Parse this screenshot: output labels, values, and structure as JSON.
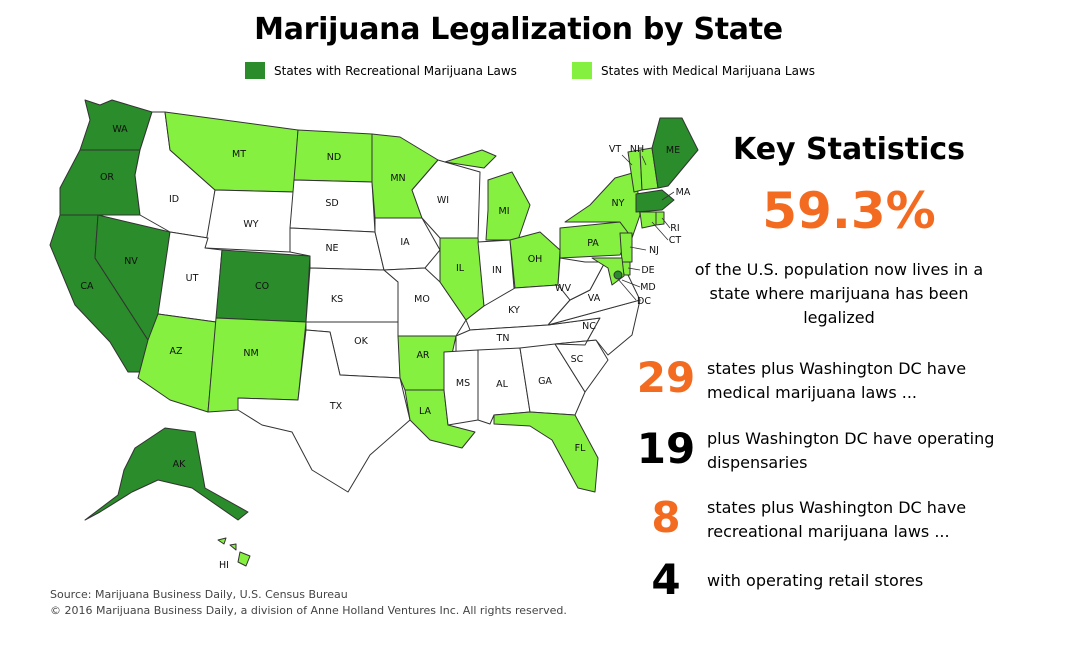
{
  "title": "Marijuana Legalization by State",
  "legend": [
    {
      "label": "States with Recreational Marijuana Laws",
      "color": "#2a8c2a"
    },
    {
      "label": "States with Medical Marijuana Laws",
      "color": "#85f040"
    }
  ],
  "colors": {
    "recreational": "#2a8c2a",
    "medical": "#85f040",
    "none": "#ffffff",
    "accent": "#f26b21"
  },
  "map": {
    "labels": {
      "WA": "WA",
      "OR": "OR",
      "CA": "CA",
      "NV": "NV",
      "ID": "ID",
      "MT": "MT",
      "WY": "WY",
      "UT": "UT",
      "AZ": "AZ",
      "CO": "CO",
      "NM": "NM",
      "ND": "ND",
      "SD": "SD",
      "NE": "NE",
      "KS": "KS",
      "OK": "OK",
      "TX": "TX",
      "MN": "MN",
      "IA": "IA",
      "MO": "MO",
      "AR": "AR",
      "LA": "LA",
      "WI": "WI",
      "IL": "IL",
      "MI": "MI",
      "IN": "IN",
      "OH": "OH",
      "KY": "KY",
      "TN": "TN",
      "MS": "MS",
      "AL": "AL",
      "GA": "GA",
      "FL": "FL",
      "SC": "SC",
      "NC": "NC",
      "VA": "VA",
      "WV": "WV",
      "PA": "PA",
      "NY": "NY",
      "VT": "VT",
      "NH": "NH",
      "ME": "ME",
      "MA": "MA",
      "RI": "RI",
      "CT": "CT",
      "NJ": "NJ",
      "DE": "DE",
      "MD": "MD",
      "DC": "DC",
      "AK": "AK",
      "HI": "HI"
    },
    "status": {
      "WA": "recreational",
      "OR": "recreational",
      "CA": "recreational",
      "NV": "recreational",
      "CO": "recreational",
      "AK": "recreational",
      "ME": "recreational",
      "MA": "recreational",
      "MT": "medical",
      "ND": "medical",
      "MN": "medical",
      "AZ": "medical",
      "NM": "medical",
      "AR": "medical",
      "LA": "medical",
      "IL": "medical",
      "MI": "medical",
      "OH": "medical",
      "PA": "medical",
      "NY": "medical",
      "VT": "medical",
      "NH": "medical",
      "CT": "medical",
      "RI": "medical",
      "NJ": "medical",
      "DE": "medical",
      "MD": "medical",
      "FL": "medical",
      "HI": "medical",
      "ID": "none",
      "WY": "none",
      "UT": "none",
      "SD": "none",
      "NE": "none",
      "KS": "none",
      "OK": "none",
      "TX": "none",
      "IA": "none",
      "MO": "none",
      "WI": "none",
      "IN": "none",
      "KY": "none",
      "TN": "none",
      "MS": "none",
      "AL": "none",
      "GA": "none",
      "SC": "none",
      "NC": "none",
      "VA": "none",
      "WV": "none",
      "DC": "recreational"
    }
  },
  "stats": {
    "title": "Key Statistics",
    "percent": "59.3%",
    "percent_desc": "of the U.S. population now lives in a state where marijuana has been legalized",
    "items": [
      {
        "number": "29",
        "text": "states plus Washington DC have medical marijuana laws ...",
        "color": "#f26b21"
      },
      {
        "number": "19",
        "text": "plus Washington DC have operating dispensaries",
        "color": "#000000"
      },
      {
        "number": "8",
        "text": "states plus Washington DC have recreational marijuana laws ...",
        "color": "#f26b21"
      },
      {
        "number": "4",
        "text": "with operating retail stores",
        "color": "#000000"
      }
    ]
  },
  "source": {
    "line1": "Source: Marijuana Business Daily, U.S. Census Bureau",
    "line2": "© 2016 Marijuana Business Daily, a division of Anne Holland Ventures Inc. All rights reserved."
  }
}
